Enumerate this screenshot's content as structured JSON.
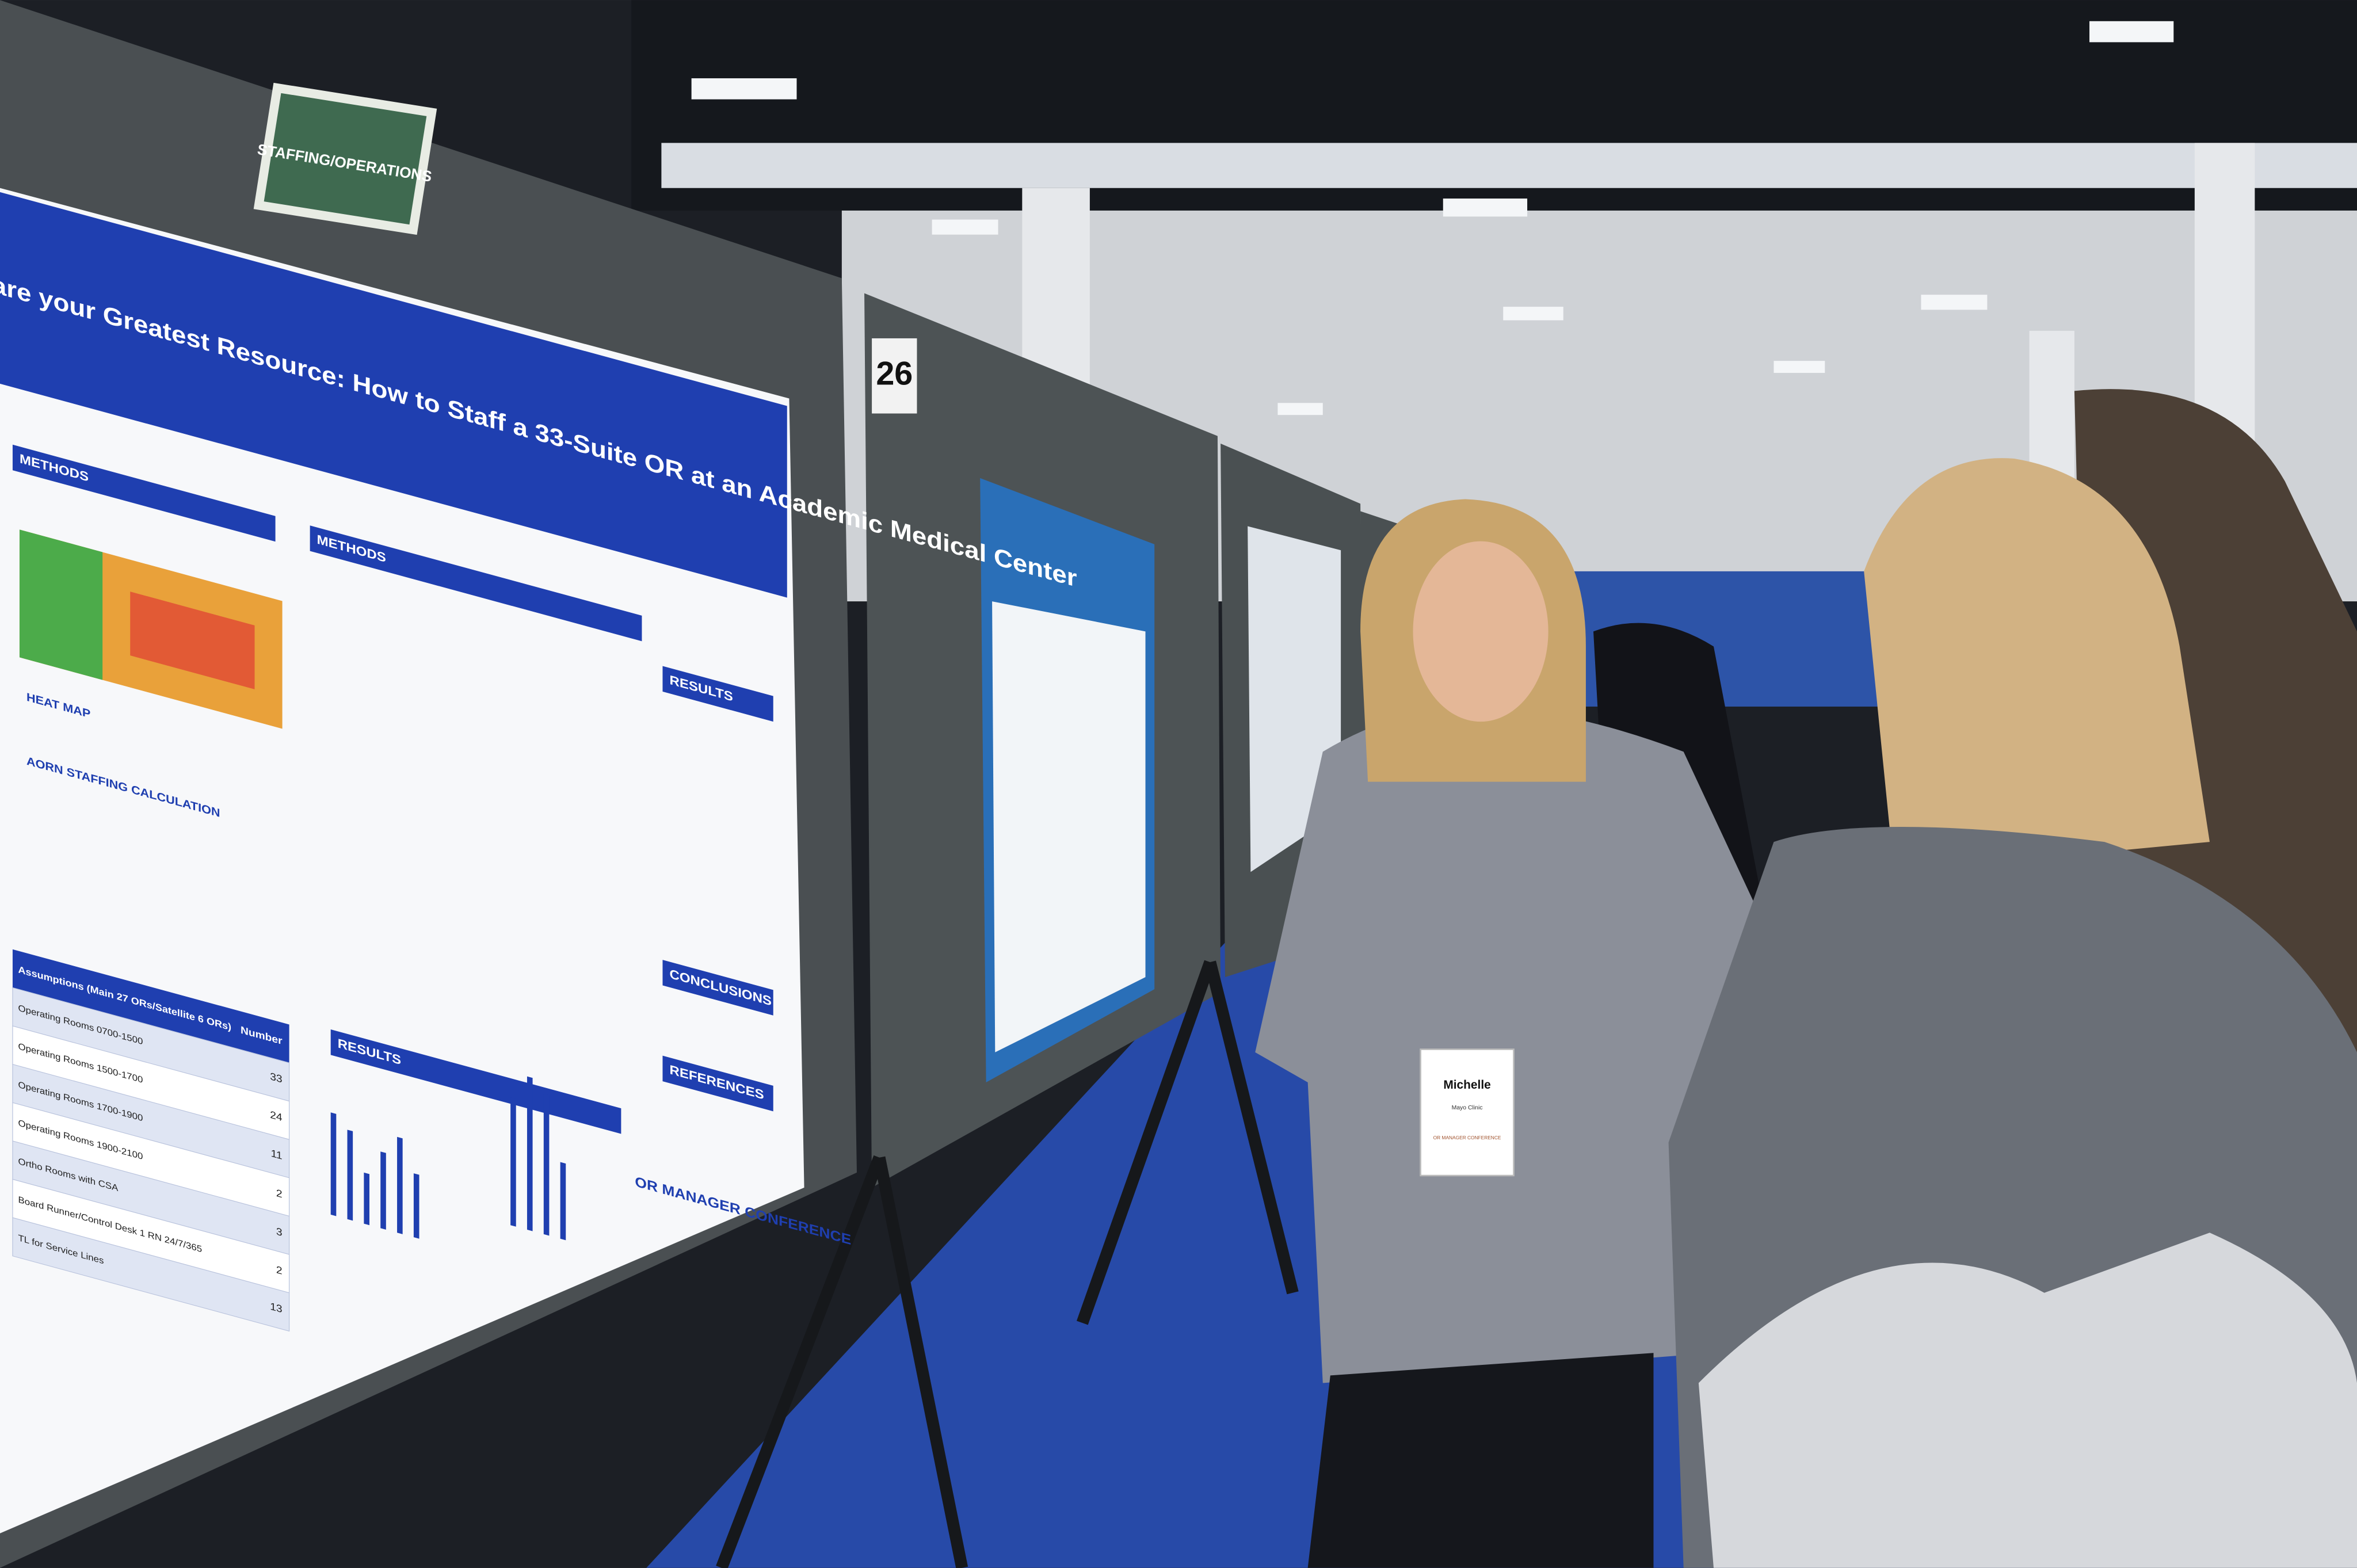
{
  "sign": {
    "category": "STAFFING/OPERATIONS",
    "board_number": "26"
  },
  "poster": {
    "title": "are your Greatest Resource: How to Staff a 33-Suite OR at an Academic Medical Center",
    "sections": [
      "METHODS",
      "METHODS",
      "RESULTS",
      "CONCLUSIONS",
      "REFERENCES",
      "RESULTS"
    ],
    "heat_map_label": "HEAT MAP",
    "calc_heading": "AORN STAFFING CALCULATION",
    "assumptions": {
      "heading": "Assumptions (Main 27 ORs/Satellite 6 ORs)",
      "number_heading": "Number",
      "rows": [
        {
          "label": "Operating Rooms 0700-1500",
          "number": 33
        },
        {
          "label": "Operating Rooms 1500-1700",
          "number": 24
        },
        {
          "label": "Operating Rooms 1700-1900",
          "number": 11
        },
        {
          "label": "Operating Rooms 1900-2100",
          "number": 2
        },
        {
          "label": "Ortho Rooms with CSA",
          "number": 3
        },
        {
          "label": "Board Runner/Control Desk 1 RN 24/7/365",
          "number": 2
        },
        {
          "label": "TL for Service Lines",
          "number": 13
        }
      ]
    },
    "logo": "OR MANAGER CONFERENCE"
  },
  "badge": {
    "name": "Michelle",
    "org": "Mayo Clinic",
    "event": "OR MANAGER CONFERENCE"
  }
}
